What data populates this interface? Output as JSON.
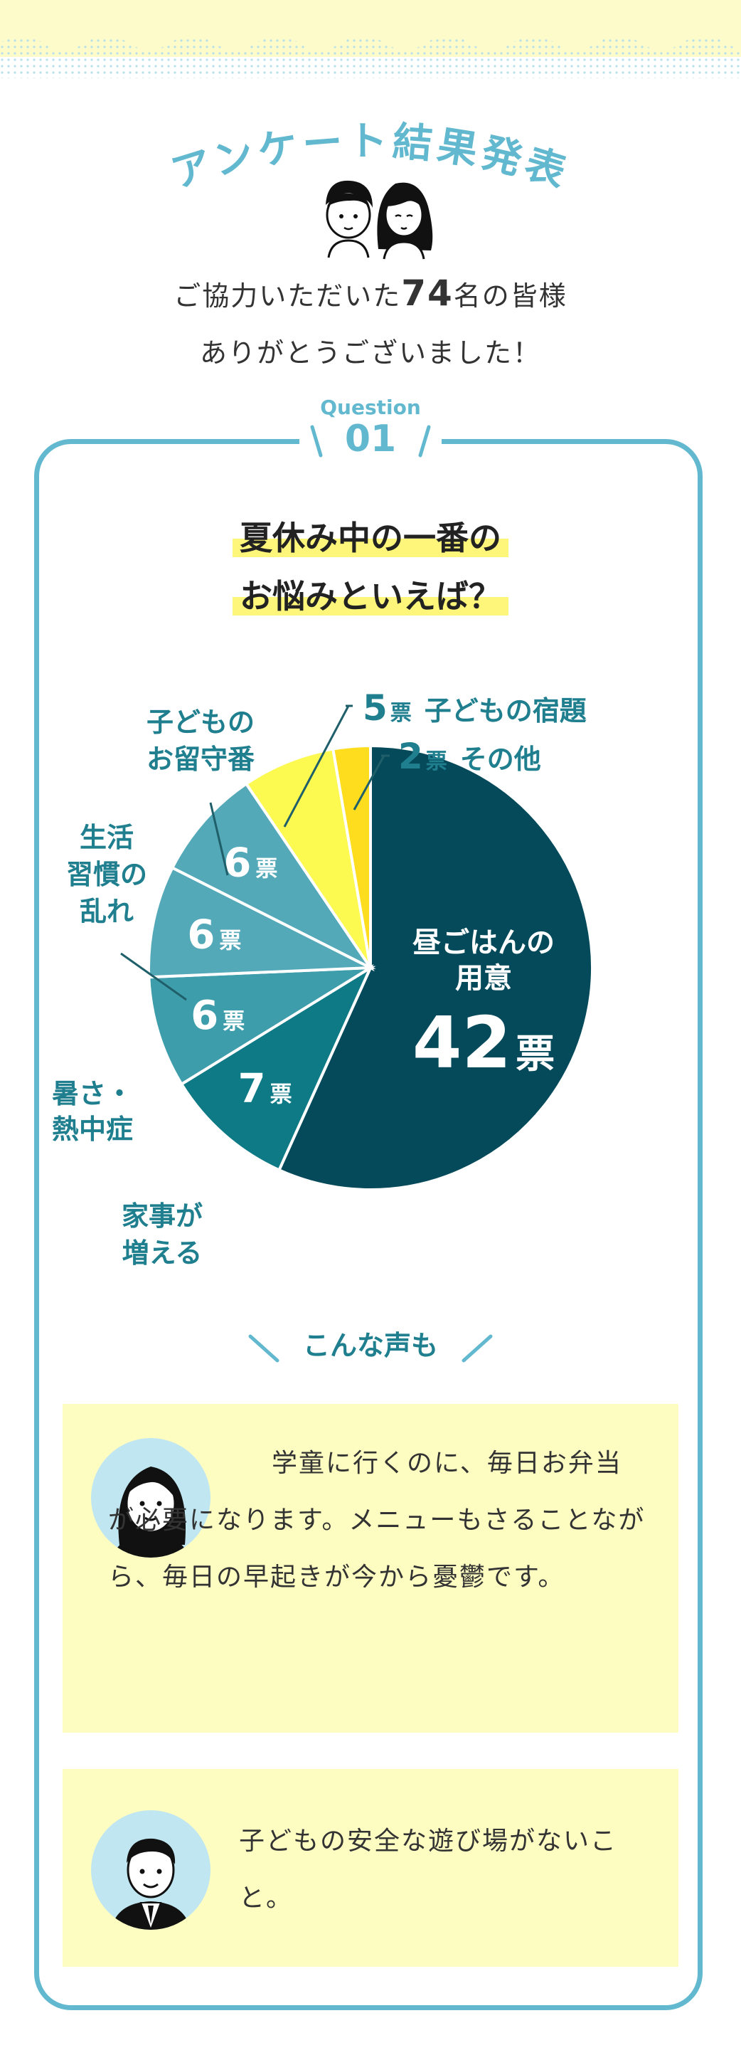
{
  "header": {
    "title": "アンケート結果発表",
    "thanks_line1_pre": "ご協力いただいた",
    "thanks_count": "74",
    "thanks_line1_post": "名の皆様",
    "thanks_line2": "ありがとうございました！"
  },
  "question": {
    "label": "Question",
    "number": "01",
    "headline_line1": "夏休み中の一番の",
    "headline_line2": "お悩みといえば？"
  },
  "colors": {
    "accent": "#62b9cf",
    "highlight": "#fdf67a",
    "text_teal": "#1f7f8f",
    "voice_bg": "#fefdc1"
  },
  "chart_data": {
    "type": "pie",
    "title": "",
    "unit": "票",
    "total": 74,
    "slices": [
      {
        "label": "昼ごはんの用意",
        "label_lines": [
          "昼ごはんの",
          "用意"
        ],
        "value": 42,
        "color": "#054a5a"
      },
      {
        "label": "家事が増える",
        "label_lines": [
          "家事が",
          "増える"
        ],
        "value": 7,
        "color": "#0d7a86"
      },
      {
        "label": "暑さ・熱中症",
        "label_lines": [
          "暑さ・",
          "熱中症"
        ],
        "value": 6,
        "color": "#3e9daa"
      },
      {
        "label": "生活習慣の乱れ",
        "label_lines": [
          "生活",
          "習慣の",
          "乱れ"
        ],
        "value": 6,
        "color": "#53a9b8"
      },
      {
        "label": "子どものお留守番",
        "label_lines": [
          "子どもの",
          "お留守番"
        ],
        "value": 6,
        "color": "#53a9b8"
      },
      {
        "label": "子どもの宿題",
        "label_lines": [
          "子どもの宿題"
        ],
        "value": 5,
        "color": "#fcf950"
      },
      {
        "label": "その他",
        "label_lines": [
          "その他"
        ],
        "value": 2,
        "color": "#fddd1e"
      }
    ]
  },
  "voices": {
    "title": "こんな声も",
    "items": [
      {
        "avatar": "woman-avatar-icon",
        "text": "学童に行くのに、毎日お弁当が必要になります。メニューもさることながら、毎日の早起きが今から憂鬱です。"
      },
      {
        "avatar": "man-avatar-icon",
        "text": "子どもの安全な遊び場がないこと。"
      }
    ]
  }
}
